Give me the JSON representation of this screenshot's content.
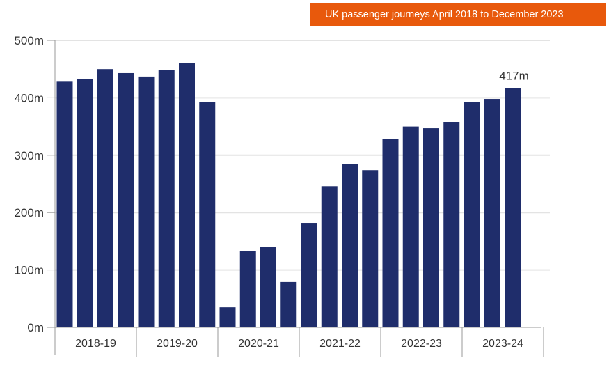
{
  "chart_data": {
    "type": "bar",
    "title": "UK passenger journeys April 2018 to December 2023",
    "xlabel": "",
    "ylabel": "",
    "ylim": [
      0,
      500
    ],
    "yticks": [
      "0m",
      "100m",
      "200m",
      "300m",
      "400m",
      "500m"
    ],
    "ytick_values": [
      0,
      100,
      200,
      300,
      400,
      500
    ],
    "groups": [
      "2018-19",
      "2019-20",
      "2020-21",
      "2021-22",
      "2022-23",
      "2023-24"
    ],
    "values": [
      428,
      433,
      450,
      443,
      437,
      448,
      461,
      392,
      35,
      133,
      140,
      79,
      182,
      246,
      284,
      274,
      328,
      350,
      347,
      358,
      392,
      398,
      417
    ],
    "unit": "m",
    "annotation": "417m",
    "grid": true,
    "bar_color": "#1f2d6b",
    "title_bg_color": "#e8590c"
  }
}
